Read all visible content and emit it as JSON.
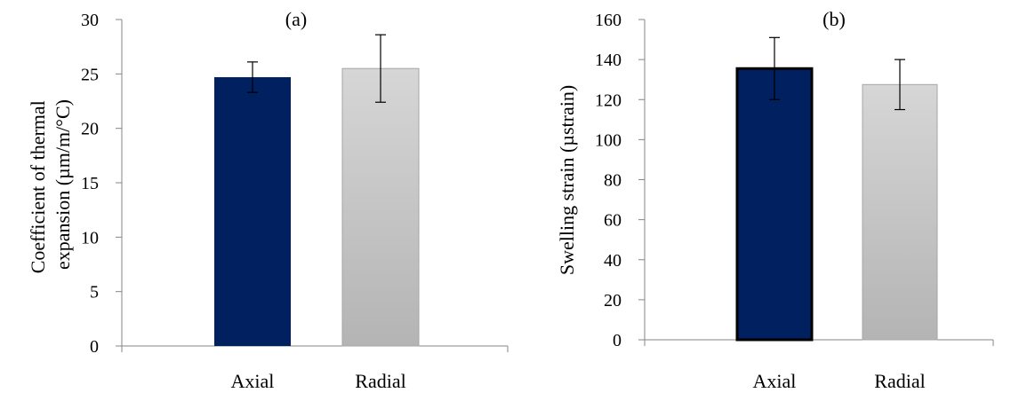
{
  "chart_data": [
    {
      "type": "bar",
      "panel_label": "(a)",
      "categories": [
        "Axial",
        "Radial"
      ],
      "values": [
        24.7,
        25.5
      ],
      "error_bars": [
        1.4,
        3.1
      ],
      "ylabel_lines": [
        "Coefficient of thermal",
        "expansion (µm/m/°C)"
      ],
      "ylim": [
        0,
        30
      ],
      "yticks": [
        0,
        5,
        10,
        15,
        20,
        25,
        30
      ],
      "grid": false,
      "legend": "none",
      "bar_colors": [
        "#002060",
        "#c8c8c8"
      ]
    },
    {
      "type": "bar",
      "panel_label": "(b)",
      "categories": [
        "Axial",
        "Radial"
      ],
      "values": [
        135.5,
        127.5
      ],
      "error_bars": [
        15.5,
        12.5
      ],
      "ylabel_lines": [
        "Swelling strain (µstrain)"
      ],
      "ylim": [
        0,
        160
      ],
      "yticks": [
        0,
        20,
        40,
        60,
        80,
        100,
        120,
        140,
        160
      ],
      "grid": false,
      "legend": "none",
      "bar_colors": [
        "#002060",
        "#c8c8c8"
      ]
    }
  ]
}
